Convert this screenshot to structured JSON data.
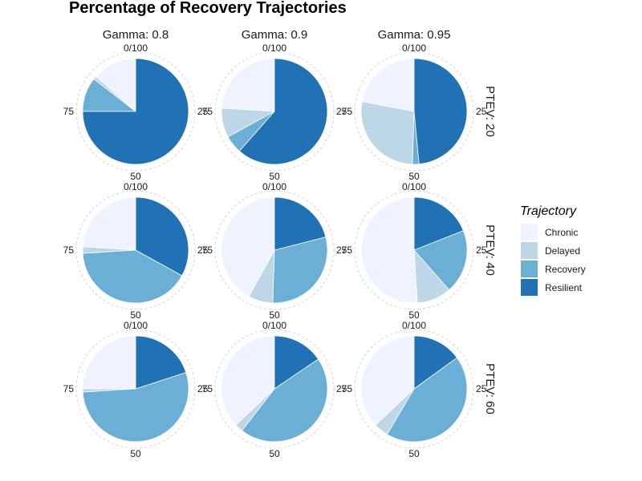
{
  "chart_data": {
    "type": "pie",
    "title": "Percentage of Recovery Trajectories",
    "theta_ticks": [
      "0/100",
      "25",
      "50",
      "75"
    ],
    "column_facet_labels": [
      "Gamma: 0.8",
      "Gamma: 0.9",
      "Gamma: 0.95"
    ],
    "row_facet_labels": [
      "PTEV: 20",
      "PTEV: 40",
      "PTEV: 60"
    ],
    "legend": {
      "title": "Trajectory",
      "placement": "right",
      "entries": [
        "Chronic",
        "Delayed",
        "Recovery",
        "Resilient"
      ]
    },
    "colors": {
      "Chronic": "#eff3ff",
      "Delayed": "#bdd7e7",
      "Recovery": "#6baed6",
      "Resilient": "#2171b5",
      "grid": "#c9c9c9"
    },
    "panels": [
      {
        "row": "PTEV: 20",
        "col": "Gamma: 0.8",
        "Resilient": 75.0,
        "Recovery": 10.5,
        "Delayed": 1.0,
        "Chronic": 13.5
      },
      {
        "row": "PTEV: 20",
        "col": "Gamma: 0.9",
        "Resilient": 61.5,
        "Recovery": 5.5,
        "Delayed": 9.0,
        "Chronic": 24.0
      },
      {
        "row": "PTEV: 20",
        "col": "Gamma: 0.95",
        "Resilient": 48.5,
        "Recovery": 2.0,
        "Delayed": 27.5,
        "Chronic": 22.0
      },
      {
        "row": "PTEV: 40",
        "col": "Gamma: 0.8",
        "Resilient": 33.0,
        "Recovery": 41.0,
        "Delayed": 2.0,
        "Chronic": 24.0
      },
      {
        "row": "PTEV: 40",
        "col": "Gamma: 0.9",
        "Resilient": 21.0,
        "Recovery": 29.5,
        "Delayed": 7.5,
        "Chronic": 42.0
      },
      {
        "row": "PTEV: 40",
        "col": "Gamma: 0.95",
        "Resilient": 19.0,
        "Recovery": 19.5,
        "Delayed": 10.5,
        "Chronic": 51.0
      },
      {
        "row": "PTEV: 60",
        "col": "Gamma: 0.8",
        "Resilient": 20.0,
        "Recovery": 54.0,
        "Delayed": 1.0,
        "Chronic": 25.0
      },
      {
        "row": "PTEV: 60",
        "col": "Gamma: 0.9",
        "Resilient": 15.5,
        "Recovery": 45.0,
        "Delayed": 2.5,
        "Chronic": 37.0
      },
      {
        "row": "PTEV: 60",
        "col": "Gamma: 0.95",
        "Resilient": 15.0,
        "Recovery": 43.5,
        "Delayed": 4.5,
        "Chronic": 37.0
      }
    ]
  }
}
